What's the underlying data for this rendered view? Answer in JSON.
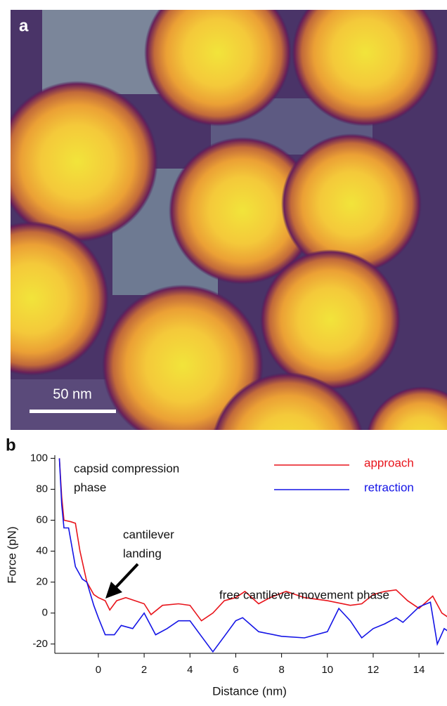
{
  "panel_a": {
    "label": "a",
    "scale_bar": "50 nm"
  },
  "chart_data": {
    "type": "line",
    "panel_label": "b",
    "xlabel": "Distance (nm)",
    "ylabel": "Force (pN)",
    "xlim": [
      -1.9,
      15.1
    ],
    "ylim": [
      -26,
      102
    ],
    "xticks": [
      0,
      2,
      4,
      6,
      8,
      10,
      12,
      14
    ],
    "yticks": [
      -20,
      0,
      20,
      40,
      60,
      80,
      100
    ],
    "annotations": [
      [
        "capsid compression",
        "phase"
      ],
      [
        "cantilever",
        "landing"
      ],
      [
        "free cantilever movement phase"
      ]
    ],
    "series": [
      {
        "name": "approach",
        "color": "#e8141b",
        "x": [
          -1.7,
          -1.6,
          -1.5,
          -1.2,
          -1.0,
          -0.8,
          -0.5,
          -0.2,
          0,
          0.3,
          0.5,
          0.8,
          1.2,
          1.6,
          2.0,
          2.3,
          2.8,
          3.5,
          4.0,
          4.5,
          5.0,
          5.5,
          6.0,
          6.4,
          7.0,
          7.5,
          8.2,
          9.0,
          10.0,
          11.0,
          11.5,
          12.0,
          12.5,
          13.0,
          13.5,
          14.0,
          14.6,
          15.0,
          15.3
        ],
        "values": [
          100,
          75,
          60,
          59,
          58,
          40,
          20,
          12,
          10,
          8,
          2,
          8,
          10,
          8,
          6,
          -1,
          5,
          6,
          5,
          -5,
          0,
          8,
          10,
          14,
          6,
          10,
          14,
          10,
          8,
          5,
          6,
          12,
          14,
          15,
          8,
          3,
          11,
          0,
          -3
        ]
      },
      {
        "name": "retraction",
        "color": "#1414e6",
        "x": [
          -1.7,
          -1.6,
          -1.5,
          -1.3,
          -1.0,
          -0.7,
          -0.5,
          -0.2,
          0,
          0.3,
          0.7,
          1.0,
          1.5,
          2.0,
          2.5,
          3.0,
          3.5,
          4.0,
          4.5,
          5.0,
          5.5,
          6.0,
          6.3,
          7.0,
          8.0,
          9.0,
          10.0,
          10.5,
          11.0,
          11.5,
          12.0,
          12.5,
          13.0,
          13.3,
          14.0,
          14.5,
          14.8,
          15.1,
          15.3
        ],
        "values": [
          100,
          70,
          55,
          55,
          30,
          22,
          20,
          5,
          -3,
          -14,
          -14,
          -8,
          -10,
          0,
          -14,
          -10,
          -5,
          -5,
          -15,
          -25,
          -15,
          -5,
          -3,
          -12,
          -15,
          -16,
          -12,
          3,
          -5,
          -16,
          -10,
          -7,
          -3,
          -6,
          4,
          7,
          -20,
          -10,
          -12
        ]
      }
    ]
  }
}
